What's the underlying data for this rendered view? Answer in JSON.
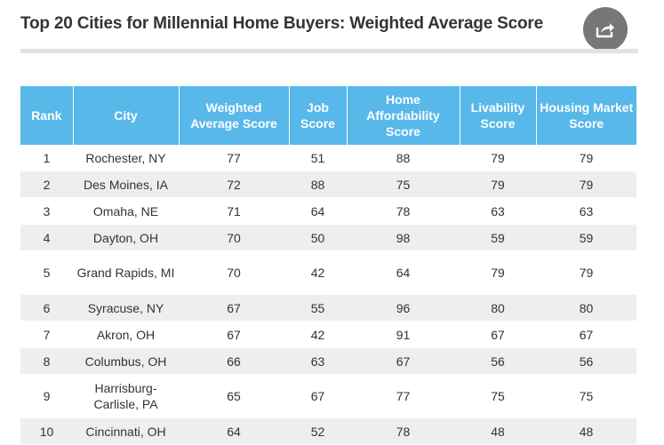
{
  "title": "Top 20 Cities for Millennial Home Buyers: Weighted Average Score",
  "share": {
    "icon": "share-icon"
  },
  "colors": {
    "header_bg": "#58b8e9",
    "header_text": "#ffffff",
    "stripe": "#eeeeee",
    "share_bg": "#777777"
  },
  "chart_data": {
    "type": "table",
    "title": "Top 20 Cities for Millennial Home Buyers: Weighted Average Score",
    "columns": [
      "Rank",
      "City",
      "Weighted Average Score",
      "Job Score",
      "Home Affordability Score",
      "Livability Score",
      "Housing Market Score"
    ],
    "rows": [
      [
        "1",
        "Rochester, NY",
        "77",
        "51",
        "88",
        "79",
        "79"
      ],
      [
        "2",
        "Des Moines, IA",
        "72",
        "88",
        "75",
        "79",
        "79"
      ],
      [
        "3",
        "Omaha, NE",
        "71",
        "64",
        "78",
        "63",
        "63"
      ],
      [
        "4",
        "Dayton, OH",
        "70",
        "50",
        "98",
        "59",
        "59"
      ],
      [
        "5",
        "Grand Rapids, MI",
        "70",
        "42",
        "64",
        "79",
        "79"
      ],
      [
        "6",
        "Syracuse, NY",
        "67",
        "55",
        "96",
        "80",
        "80"
      ],
      [
        "7",
        "Akron, OH",
        "67",
        "42",
        "91",
        "67",
        "67"
      ],
      [
        "8",
        "Columbus, OH",
        "66",
        "63",
        "67",
        "56",
        "56"
      ],
      [
        "9",
        "Harrisburg-Carlisle, PA",
        "65",
        "67",
        "77",
        "75",
        "75"
      ],
      [
        "10",
        "Cincinnati, OH",
        "64",
        "52",
        "78",
        "48",
        "48"
      ]
    ]
  }
}
